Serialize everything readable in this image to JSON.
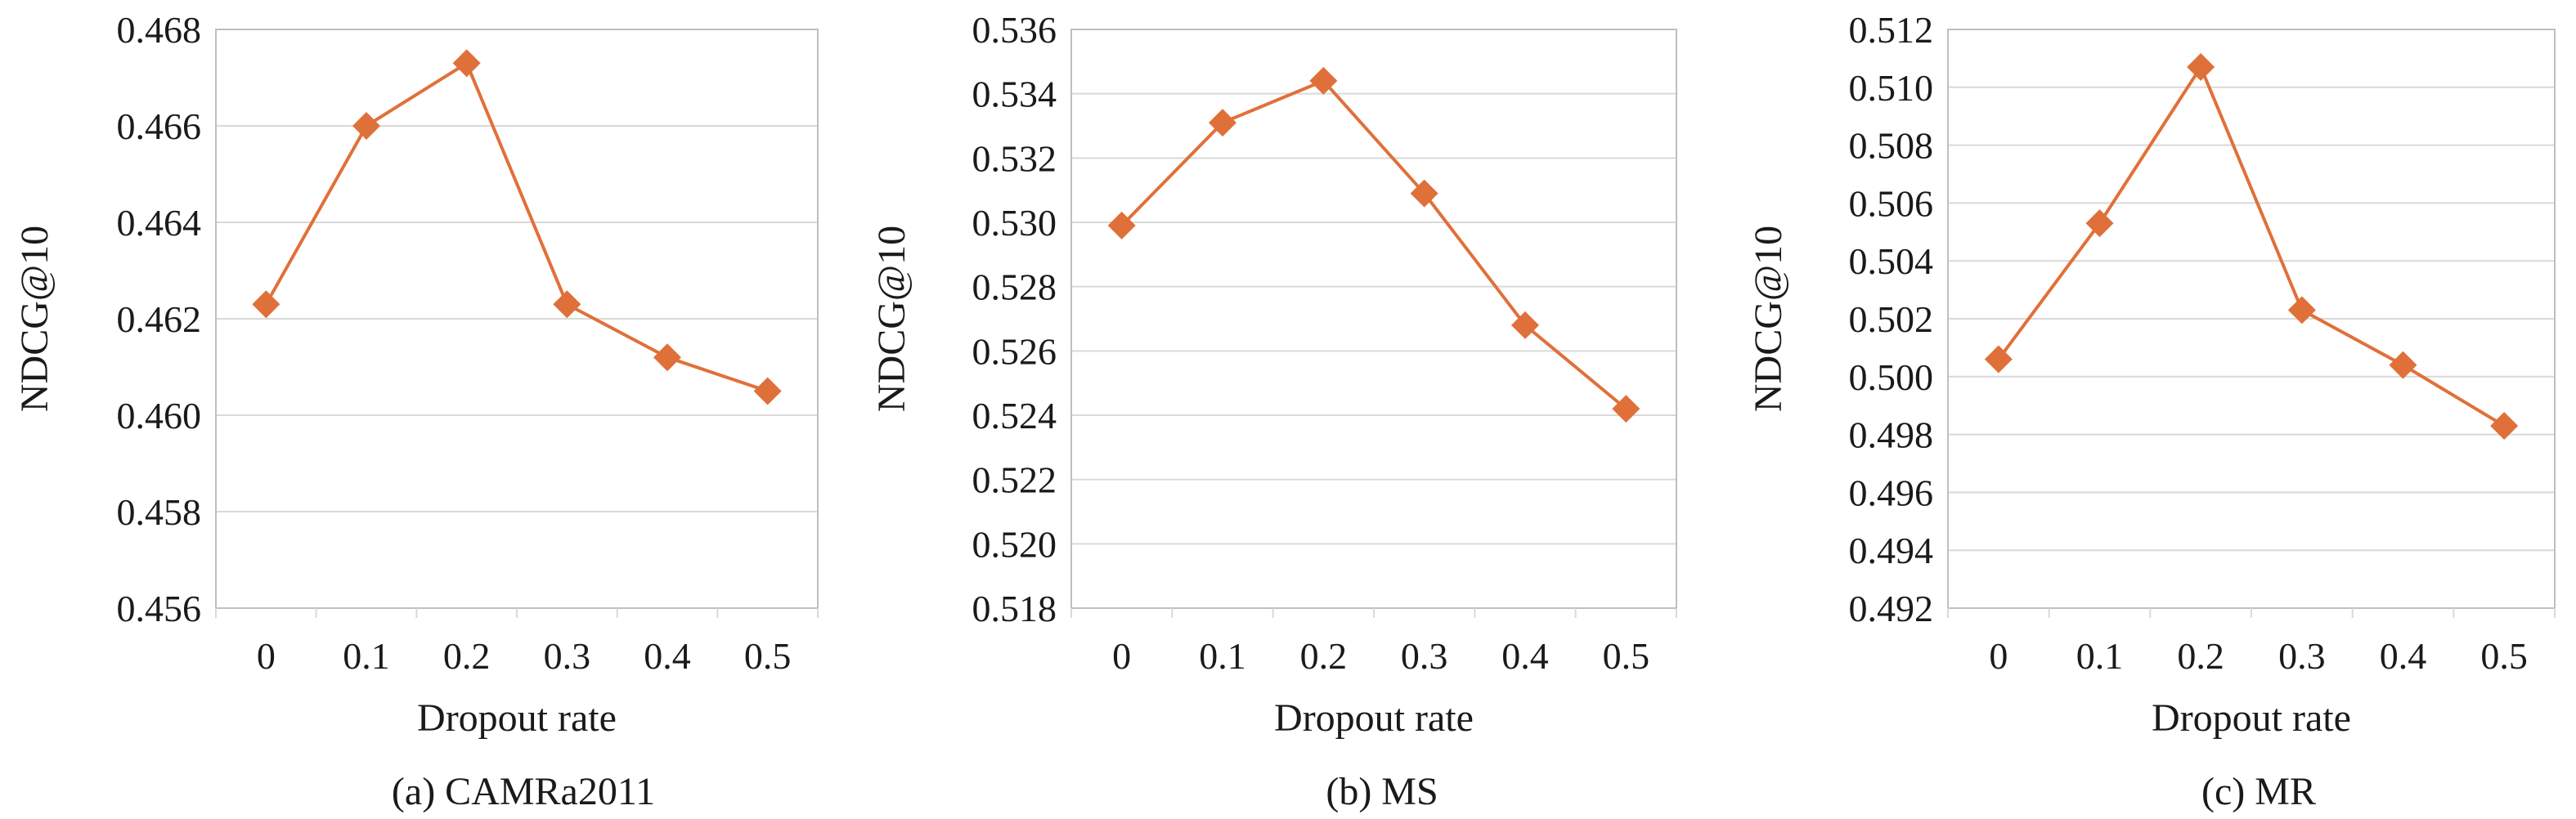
{
  "chart_data": [
    {
      "type": "line",
      "caption": "(a) CAMRa2011",
      "xlabel": "Dropout rate",
      "ylabel": "NDCG@10",
      "categories": [
        "0",
        "0.1",
        "0.2",
        "0.3",
        "0.4",
        "0.5"
      ],
      "series": [
        {
          "values": [
            0.4623,
            0.466,
            0.4673,
            0.4623,
            0.4612,
            0.4605
          ]
        }
      ],
      "ylim": [
        0.456,
        0.468
      ],
      "yticks": [
        "0.456",
        "0.458",
        "0.460",
        "0.462",
        "0.464",
        "0.466",
        "0.468"
      ],
      "grid": true,
      "marker": "diamond",
      "color": "#E0703A"
    },
    {
      "type": "line",
      "caption": "(b) MS",
      "xlabel": "Dropout rate",
      "ylabel": "NDCG@10",
      "categories": [
        "0",
        "0.1",
        "0.2",
        "0.3",
        "0.4",
        "0.5"
      ],
      "series": [
        {
          "values": [
            0.5299,
            0.5331,
            0.5344,
            0.5309,
            0.5268,
            0.5242
          ]
        }
      ],
      "ylim": [
        0.518,
        0.536
      ],
      "yticks": [
        "0.518",
        "0.520",
        "0.522",
        "0.524",
        "0.526",
        "0.528",
        "0.530",
        "0.532",
        "0.534",
        "0.536"
      ],
      "grid": true,
      "marker": "diamond",
      "color": "#E0703A"
    },
    {
      "type": "line",
      "caption": "(c) MR",
      "xlabel": "Dropout rate",
      "ylabel": "NDCG@10",
      "categories": [
        "0",
        "0.1",
        "0.2",
        "0.3",
        "0.4",
        "0.5"
      ],
      "series": [
        {
          "values": [
            0.5006,
            0.5053,
            0.5107,
            0.5023,
            0.5004,
            0.4983
          ]
        }
      ],
      "ylim": [
        0.492,
        0.512
      ],
      "yticks": [
        "0.492",
        "0.494",
        "0.496",
        "0.498",
        "0.500",
        "0.502",
        "0.504",
        "0.506",
        "0.508",
        "0.510",
        "0.512"
      ],
      "grid": true,
      "marker": "diamond",
      "color": "#E0703A"
    }
  ]
}
